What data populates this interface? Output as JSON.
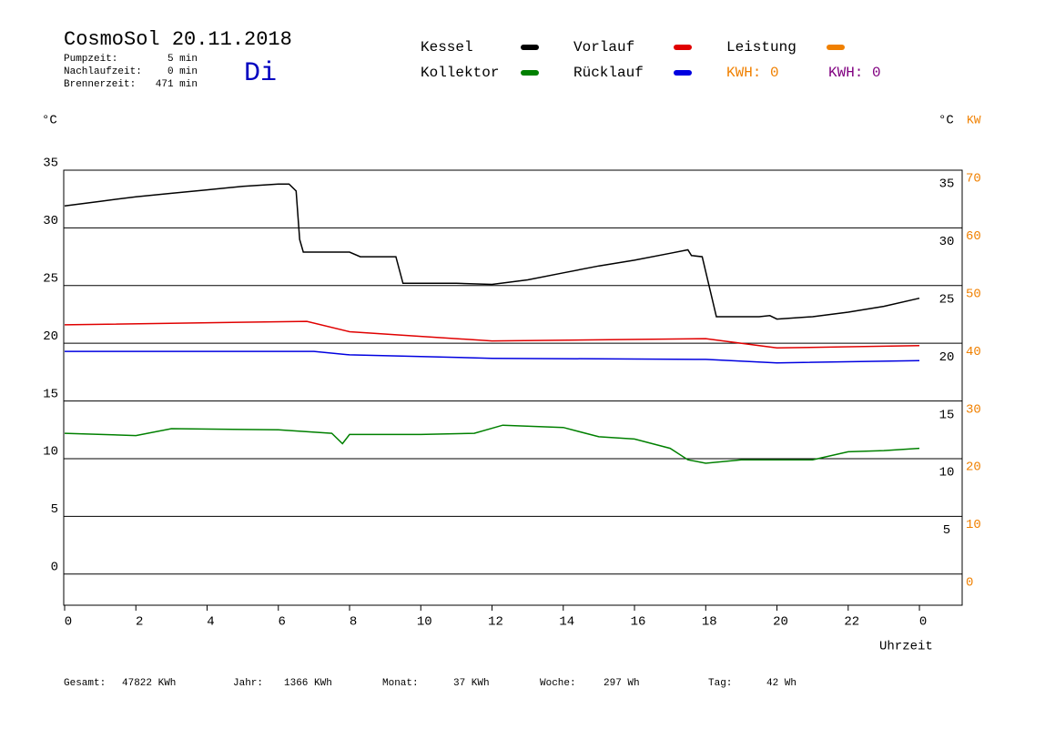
{
  "header": {
    "title": "CosmoSol 20.11.2018",
    "day": "Di",
    "stats": [
      {
        "label": "Pumpzeit:",
        "value": "5 min"
      },
      {
        "label": "Nachlaufzeit:",
        "value": "0 min"
      },
      {
        "label": "Brennerzeit:",
        "value": "471 min"
      }
    ]
  },
  "chart_data": {
    "type": "line",
    "y_unit": "°C",
    "y2_unit_c": "°C",
    "y2_unit": "KW",
    "x_label": "Uhrzeit",
    "xlim": [
      0,
      25.2
    ],
    "xticks": [
      0,
      2,
      4,
      6,
      8,
      10,
      12,
      14,
      16,
      18,
      20,
      22,
      {
        "value": 24,
        "label": "0"
      }
    ],
    "ylim": [
      -2.7,
      35
    ],
    "yticks": [
      0,
      5,
      10,
      15,
      20,
      25,
      30,
      35
    ],
    "yticks_right": [
      5,
      10,
      15,
      20,
      25,
      30,
      35
    ],
    "y2lim": [
      -5.4,
      70
    ],
    "y2ticks": [
      0,
      10,
      20,
      30,
      40,
      50,
      60,
      70
    ],
    "grid": true,
    "series": [
      {
        "name": "Kessel",
        "color": "#000000",
        "x": [
          0,
          1,
          2,
          3,
          4,
          5,
          6,
          6.3,
          6.5,
          6.6,
          6.7,
          8,
          8.3,
          9.3,
          9.5,
          10,
          11,
          12,
          13,
          14,
          15,
          16,
          17,
          17.5,
          17.6,
          17.9,
          18.3,
          19.5,
          19.8,
          20,
          21,
          22,
          23,
          24
        ],
        "values": [
          31.9,
          32.3,
          32.7,
          33,
          33.3,
          33.6,
          33.8,
          33.8,
          33.2,
          29,
          27.9,
          27.9,
          27.5,
          27.5,
          25.2,
          25.2,
          25.2,
          25.1,
          25.5,
          26.1,
          26.7,
          27.2,
          27.8,
          28.1,
          27.6,
          27.5,
          22.3,
          22.3,
          22.4,
          22.1,
          22.3,
          22.7,
          23.2,
          23.9
        ]
      },
      {
        "name": "Kollektor",
        "color": "#008000",
        "x": [
          0,
          2,
          3,
          6,
          7.5,
          7.8,
          8,
          10,
          11.5,
          12.3,
          14,
          15,
          16,
          17,
          17.5,
          18,
          19,
          20,
          21,
          22,
          23,
          24
        ],
        "values": [
          12.2,
          12,
          12.6,
          12.5,
          12.2,
          11.3,
          12.1,
          12.1,
          12.2,
          12.9,
          12.7,
          11.9,
          11.7,
          10.9,
          9.9,
          9.6,
          9.9,
          9.9,
          9.9,
          10.6,
          10.7,
          10.9
        ]
      },
      {
        "name": "Vorlauf",
        "color": "#e00000",
        "x": [
          0,
          6.8,
          8,
          10,
          12,
          18,
          20,
          24
        ],
        "values": [
          21.6,
          21.9,
          21,
          20.6,
          20.2,
          20.4,
          19.6,
          19.8
        ]
      },
      {
        "name": "Rücklauf",
        "color": "#0000e0",
        "x": [
          0,
          7,
          8,
          12,
          18,
          20,
          24
        ],
        "values": [
          19.3,
          19.3,
          19,
          18.7,
          18.6,
          18.3,
          18.5
        ]
      },
      {
        "name": "Leistung",
        "color": "#f08000",
        "axis": "y2",
        "x": [],
        "values": []
      }
    ],
    "kwh_labels": [
      {
        "text": "KWH: 0",
        "color": "#f08000"
      },
      {
        "text": "KWH: 0",
        "color": "#800080"
      }
    ]
  },
  "footer": [
    {
      "label": "Gesamt:",
      "value": "47822 KWh"
    },
    {
      "label": "Jahr:",
      "value": "1366 KWh"
    },
    {
      "label": "Monat:",
      "value": "37 KWh"
    },
    {
      "label": "Woche:",
      "value": "297 Wh"
    },
    {
      "label": "Tag:",
      "value": "42 Wh"
    }
  ]
}
